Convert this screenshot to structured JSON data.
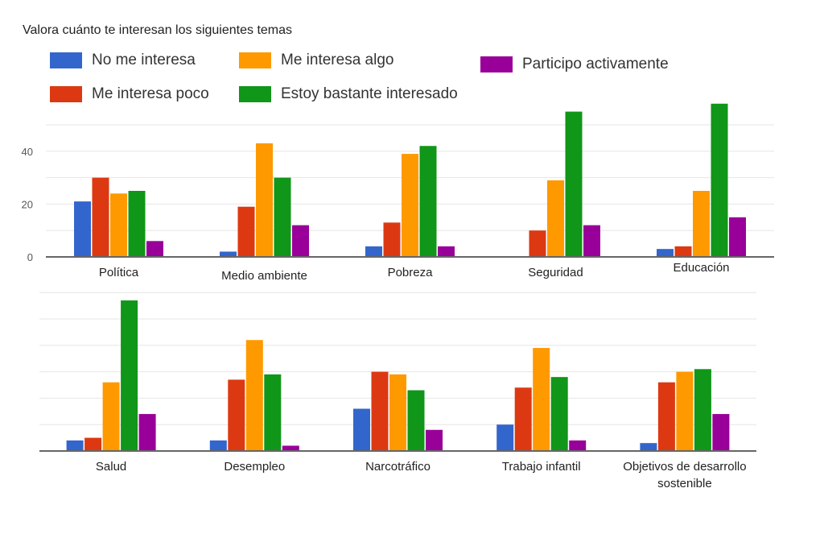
{
  "title": "Valora cuánto te interesan los siguientes temas",
  "legend": [
    {
      "label": "No me interesa",
      "color": "#3366cc"
    },
    {
      "label": "Me interesa poco",
      "color": "#dc3912"
    },
    {
      "label": "Me interesa algo",
      "color": "#ff9900"
    },
    {
      "label": "Estoy bastante interesado",
      "color": "#109618"
    },
    {
      "label": "Participo activamente",
      "color": "#990099"
    }
  ],
  "chart_data": [
    {
      "type": "bar",
      "title": "Valora cuánto te interesan los siguientes temas",
      "xlabel": "",
      "ylabel": "",
      "ylim": [
        0,
        50
      ],
      "yticks": [
        0,
        20,
        40
      ],
      "ytick_labels": [
        "0",
        "20",
        "40"
      ],
      "grid": true,
      "legend_position": "top",
      "categories": [
        "Política",
        "Medio ambiente",
        "Pobreza",
        "Seguridad",
        "Educación"
      ],
      "series": [
        {
          "name": "No me interesa",
          "values": [
            21,
            2,
            4,
            0,
            3
          ]
        },
        {
          "name": "Me interesa poco",
          "values": [
            30,
            19,
            13,
            10,
            4
          ]
        },
        {
          "name": "Me interesa algo",
          "values": [
            24,
            43,
            39,
            29,
            25
          ]
        },
        {
          "name": "Estoy bastante interesado",
          "values": [
            25,
            30,
            42,
            55,
            58
          ]
        },
        {
          "name": "Participo activamente",
          "values": [
            6,
            12,
            4,
            12,
            15
          ]
        }
      ]
    },
    {
      "type": "bar",
      "title": "",
      "xlabel": "",
      "ylabel": "",
      "ylim": [
        0,
        60
      ],
      "yticks": [],
      "grid": true,
      "categories": [
        "Salud",
        "Desempleo",
        "Narcotráfico",
        "Trabajo infantil",
        "Objetivos de desarrollo sostenible"
      ],
      "category_lines": [
        [
          "Salud"
        ],
        [
          "Desempleo"
        ],
        [
          "Narcotráfico"
        ],
        [
          "Trabajo infantil"
        ],
        [
          "Objetivos de desarrollo",
          "sostenible"
        ]
      ],
      "series": [
        {
          "name": "No me interesa",
          "values": [
            4,
            4,
            16,
            10,
            3
          ]
        },
        {
          "name": "Me interesa poco",
          "values": [
            5,
            27,
            30,
            24,
            26
          ]
        },
        {
          "name": "Me interesa algo",
          "values": [
            26,
            42,
            29,
            39,
            30
          ]
        },
        {
          "name": "Estoy bastante interesado",
          "values": [
            57,
            29,
            23,
            28,
            31
          ]
        },
        {
          "name": "Participo activamente",
          "values": [
            14,
            2,
            8,
            4,
            14
          ]
        }
      ]
    }
  ]
}
